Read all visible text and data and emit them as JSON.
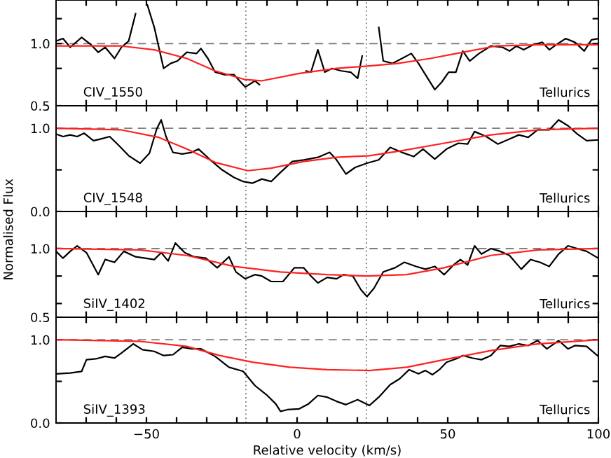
{
  "chart_data": [
    {
      "type": "line",
      "xlim": [
        -80,
        100
      ],
      "ylim": [
        0.5,
        1.35
      ],
      "tick_labels": "y",
      "xticks": [
        {
          "value": -70,
          "label": null
        },
        {
          "value": -60,
          "label": null
        },
        {
          "value": -50,
          "label": null
        },
        {
          "value": -40,
          "label": null
        },
        {
          "value": -30,
          "label": null
        },
        {
          "value": -20,
          "label": null
        },
        {
          "value": -10,
          "label": null
        },
        {
          "value": 0,
          "label": null
        },
        {
          "value": 10,
          "label": null
        },
        {
          "value": 20,
          "label": null
        },
        {
          "value": 30,
          "label": null
        },
        {
          "value": 40,
          "label": null
        },
        {
          "value": 50,
          "label": null
        },
        {
          "value": 60,
          "label": null
        },
        {
          "value": 70,
          "label": null
        },
        {
          "value": 80,
          "label": null
        },
        {
          "value": 90,
          "label": null
        },
        {
          "value": 100,
          "label": null
        }
      ],
      "yticks": [
        {
          "value": 0.5,
          "label": "0.5"
        },
        {
          "value": 0.8,
          "label": null
        },
        {
          "value": 1.0,
          "label": "1.0"
        },
        {
          "value": 1.2,
          "label": null
        }
      ],
      "annotations": [
        "CIV_1550",
        "Tellurics"
      ],
      "ref_lines": [
        {
          "axis": "y",
          "value": 1.0,
          "color": "#808080",
          "line_style": "dashed"
        },
        {
          "axis": "x",
          "value": -17,
          "color": "#808080",
          "line_style": "dotted"
        },
        {
          "axis": "x",
          "value": 23,
          "color": "#808080",
          "line_style": "dotted"
        }
      ],
      "series": [
        {
          "color": "#000000",
          "x": [
            -80,
            -77.7,
            -75.3,
            -71.5,
            -68.4,
            -66.0,
            -63.7,
            -60.6,
            -58.3,
            -55.9,
            -53.6,
            -51.3,
            -49.7,
            -47.4,
            -44.3,
            -42.0,
            -39.7,
            -36.6,
            -33.4,
            -31.9,
            -29.6,
            -27.2,
            -24.1,
            -21.0,
            -18.7,
            -17.2,
            -14.0,
            -12.5,
            -11.0,
            -5.0,
            1.5,
            3.0,
            4.6,
            6.9,
            9.2,
            11.6,
            14.7,
            17.8,
            20.1,
            21.6,
            23.2,
            25.5,
            27.1,
            28.6,
            31.7,
            34.8,
            37.9,
            40.3,
            42.6,
            45.7,
            48.0,
            50.3,
            52.7,
            55.0,
            57.3,
            60.4,
            64.3,
            68.2,
            70.5,
            72.8,
            75.2,
            78.3,
            81.4,
            83.7,
            86.0,
            89.1,
            92.2,
            95.3,
            97.7,
            100
          ],
          "values": [
            1.02,
            1.04,
            0.97,
            1.05,
            0.99,
            0.93,
            0.97,
            0.88,
            0.97,
            1.02,
            1.24,
            null,
            1.31,
            1.13,
            0.8,
            0.84,
            0.86,
            0.93,
            0.92,
            0.96,
            0.88,
            0.77,
            0.75,
            0.75,
            0.69,
            0.65,
            0.7,
            0.67,
            null,
            null,
            null,
            0.78,
            0.77,
            0.95,
            0.77,
            0.8,
            0.78,
            0.77,
            0.72,
            0.9,
            null,
            null,
            1.13,
            0.86,
            0.84,
            0.88,
            0.92,
            0.84,
            0.75,
            0.63,
            0.69,
            0.77,
            0.77,
            0.94,
            0.86,
            0.92,
            0.98,
            0.97,
            0.94,
            0.98,
            0.95,
            0.99,
            1.01,
            0.95,
            0.99,
            1.04,
            1.01,
            0.94,
            1.03,
            1.04
          ]
        },
        {
          "color": "#ff2020",
          "x": [
            -80,
            -58.3,
            -47.4,
            -36.6,
            -27.2,
            -17.2,
            -11.8,
            0.7,
            13.1,
            24.0,
            33.3,
            44.2,
            55.0,
            65.9,
            79.8,
            100
          ],
          "values": [
            0.98,
            0.98,
            0.95,
            0.88,
            0.78,
            0.71,
            0.7,
            0.76,
            0.8,
            0.82,
            0.84,
            0.88,
            0.93,
            0.98,
            0.99,
            0.99
          ]
        }
      ]
    },
    {
      "type": "line",
      "xlim": [
        -80,
        100
      ],
      "ylim": [
        0,
        1.27
      ],
      "tick_labels": "y",
      "xticks": [
        {
          "value": -70,
          "label": null
        },
        {
          "value": -60,
          "label": null
        },
        {
          "value": -50,
          "label": null
        },
        {
          "value": -40,
          "label": null
        },
        {
          "value": -30,
          "label": null
        },
        {
          "value": -20,
          "label": null
        },
        {
          "value": -10,
          "label": null
        },
        {
          "value": 0,
          "label": null
        },
        {
          "value": 10,
          "label": null
        },
        {
          "value": 20,
          "label": null
        },
        {
          "value": 30,
          "label": null
        },
        {
          "value": 40,
          "label": null
        },
        {
          "value": 50,
          "label": null
        },
        {
          "value": 60,
          "label": null
        },
        {
          "value": 70,
          "label": null
        },
        {
          "value": 80,
          "label": null
        },
        {
          "value": 90,
          "label": null
        },
        {
          "value": 100,
          "label": null
        }
      ],
      "yticks": [
        {
          "value": 0,
          "label": "0.0"
        },
        {
          "value": 0.5,
          "label": null
        },
        {
          "value": 1.0,
          "label": "1.0"
        }
      ],
      "annotations": [
        "CIV_1548",
        "Tellurics"
      ],
      "ref_lines": [
        {
          "axis": "y",
          "value": 1.0,
          "color": "#808080",
          "line_style": "dashed"
        },
        {
          "axis": "x",
          "value": -17,
          "color": "#808080",
          "line_style": "dotted"
        },
        {
          "axis": "x",
          "value": 23,
          "color": "#808080",
          "line_style": "dotted"
        }
      ],
      "series": [
        {
          "color": "#000000",
          "x": [
            -80,
            -77.7,
            -75.3,
            -73.0,
            -70.7,
            -67.6,
            -65.3,
            -62.2,
            -59.1,
            -55.9,
            -52.1,
            -49.0,
            -46.6,
            -45.1,
            -43.5,
            -41.2,
            -38.1,
            -35.0,
            -32.7,
            -28.8,
            -24.9,
            -21.0,
            -17.9,
            -14.8,
            -11.7,
            -8.6,
            -5.5,
            -1.6,
            2.2,
            6.9,
            10.8,
            13.1,
            16.2,
            19.3,
            23.2,
            27.1,
            30.9,
            34.8,
            38.7,
            41.8,
            45.7,
            49.6,
            53.5,
            56.6,
            58.9,
            62.8,
            66.6,
            70.5,
            73.6,
            76.7,
            79.8,
            83.7,
            86.8,
            89.9,
            93.0,
            96.1,
            100
          ],
          "values": [
            0.93,
            0.9,
            0.92,
            0.9,
            0.94,
            0.85,
            0.87,
            0.9,
            0.79,
            0.67,
            0.58,
            0.7,
            0.99,
            1.1,
            0.9,
            0.71,
            0.69,
            0.71,
            0.75,
            0.62,
            0.5,
            0.41,
            0.36,
            0.34,
            0.39,
            0.36,
            0.47,
            0.6,
            0.62,
            0.65,
            0.71,
            0.62,
            0.45,
            0.53,
            0.58,
            0.62,
            0.77,
            0.71,
            0.66,
            0.75,
            0.63,
            0.75,
            0.82,
            0.81,
            0.96,
            0.9,
            0.81,
            0.87,
            0.92,
            0.89,
            0.98,
            0.98,
            1.1,
            1.03,
            0.93,
            0.85,
            0.86
          ]
        },
        {
          "color": "#ff2020",
          "x": [
            -80,
            -58.3,
            -45.9,
            -36.6,
            -27.2,
            -16.4,
            -8.6,
            2.2,
            13.1,
            24.0,
            34.8,
            48.8,
            64.3,
            79.8,
            100
          ],
          "values": [
            1.0,
            0.98,
            0.89,
            0.75,
            0.59,
            0.49,
            0.52,
            0.6,
            0.65,
            0.67,
            0.73,
            0.82,
            0.92,
            0.98,
            1.0
          ]
        }
      ]
    },
    {
      "type": "line",
      "xlim": [
        -80,
        100
      ],
      "ylim": [
        0.5,
        1.27
      ],
      "tick_labels": "y",
      "ylabel": "Normalised Flux",
      "xticks": [
        {
          "value": -70,
          "label": null
        },
        {
          "value": -60,
          "label": null
        },
        {
          "value": -50,
          "label": null
        },
        {
          "value": -40,
          "label": null
        },
        {
          "value": -30,
          "label": null
        },
        {
          "value": -20,
          "label": null
        },
        {
          "value": -10,
          "label": null
        },
        {
          "value": 0,
          "label": null
        },
        {
          "value": 10,
          "label": null
        },
        {
          "value": 20,
          "label": null
        },
        {
          "value": 30,
          "label": null
        },
        {
          "value": 40,
          "label": null
        },
        {
          "value": 50,
          "label": null
        },
        {
          "value": 60,
          "label": null
        },
        {
          "value": 70,
          "label": null
        },
        {
          "value": 80,
          "label": null
        },
        {
          "value": 90,
          "label": null
        },
        {
          "value": 100,
          "label": null
        }
      ],
      "yticks": [
        {
          "value": 0.5,
          "label": "0.5"
        },
        {
          "value": 0.6,
          "label": null
        },
        {
          "value": 0.8,
          "label": null
        },
        {
          "value": 1.0,
          "label": "1.0"
        }
      ],
      "annotations": [
        "SiIV_1402",
        "Tellurics"
      ],
      "ref_lines": [
        {
          "axis": "y",
          "value": 1.0,
          "color": "#808080",
          "line_style": "dashed"
        },
        {
          "axis": "x",
          "value": -17,
          "color": "#808080",
          "line_style": "dotted"
        },
        {
          "axis": "x",
          "value": 23,
          "color": "#808080",
          "line_style": "dotted"
        }
      ],
      "series": [
        {
          "color": "#000000",
          "x": [
            -80,
            -77.7,
            -75.3,
            -73.0,
            -69.9,
            -66.0,
            -63.7,
            -60.6,
            -57.5,
            -53.6,
            -50.5,
            -47.4,
            -45.1,
            -42.8,
            -40.4,
            -37.3,
            -34.2,
            -30.3,
            -26.5,
            -22.6,
            -20.3,
            -17.2,
            -14.0,
            -11.7,
            -8.6,
            -4.7,
            -0.9,
            2.2,
            4.6,
            6.9,
            10.0,
            13.1,
            15.4,
            18.5,
            21.2,
            23.2,
            25.5,
            28.6,
            32.5,
            35.6,
            39.5,
            42.6,
            45.7,
            48.8,
            51.9,
            54.2,
            56.6,
            58.9,
            61.2,
            64.3,
            67.4,
            70.5,
            74.4,
            77.5,
            80.6,
            83.7,
            86.8,
            89.9,
            93.0,
            96.1,
            100
          ],
          "values": [
            0.98,
            0.93,
            0.98,
            1.02,
            0.97,
            0.81,
            0.92,
            0.9,
            0.98,
            0.94,
            0.93,
            0.92,
            0.97,
            0.91,
            1.04,
            0.97,
            0.94,
            0.93,
            0.86,
            0.94,
            0.83,
            0.78,
            0.81,
            0.8,
            0.76,
            0.76,
            0.86,
            0.86,
            0.8,
            0.75,
            0.79,
            0.78,
            0.81,
            0.8,
            0.7,
            0.65,
            0.71,
            0.83,
            0.86,
            0.9,
            0.87,
            0.85,
            0.87,
            0.81,
            0.88,
            0.92,
            0.88,
            1.02,
            0.96,
            1.0,
            0.98,
            0.95,
            0.85,
            0.92,
            0.9,
            0.87,
            0.96,
            1.02,
            1.0,
            0.98,
            0.93
          ]
        },
        {
          "color": "#ff2020",
          "x": [
            -80,
            -52.1,
            -36.6,
            -21.0,
            -5.5,
            10.0,
            23.2,
            36.4,
            48.8,
            64.3,
            79.8,
            100
          ],
          "values": [
            1.0,
            0.99,
            0.95,
            0.87,
            0.83,
            0.81,
            0.8,
            0.81,
            0.86,
            0.95,
            0.99,
            1.0
          ]
        }
      ]
    },
    {
      "type": "line",
      "xlim": [
        -80,
        100
      ],
      "ylim": [
        0,
        1.27
      ],
      "xlabel": "Relative velocity (km/s)",
      "xticks": [
        {
          "value": -70,
          "label": null
        },
        {
          "value": -60,
          "label": null
        },
        {
          "value": -50,
          "label": "−50"
        },
        {
          "value": -40,
          "label": null
        },
        {
          "value": -30,
          "label": null
        },
        {
          "value": -20,
          "label": null
        },
        {
          "value": -10,
          "label": null
        },
        {
          "value": 0,
          "label": "0"
        },
        {
          "value": 10,
          "label": null
        },
        {
          "value": 20,
          "label": null
        },
        {
          "value": 30,
          "label": null
        },
        {
          "value": 40,
          "label": null
        },
        {
          "value": 50,
          "label": "50"
        },
        {
          "value": 60,
          "label": null
        },
        {
          "value": 70,
          "label": null
        },
        {
          "value": 80,
          "label": null
        },
        {
          "value": 90,
          "label": null
        },
        {
          "value": 100,
          "label": "100"
        }
      ],
      "yticks": [
        {
          "value": 0,
          "label": "0.0"
        },
        {
          "value": 0.5,
          "label": null
        },
        {
          "value": 1.0,
          "label": "1.0"
        }
      ],
      "annotations": [
        "SiIV_1393",
        "Tellurics"
      ],
      "ref_lines": [
        {
          "axis": "y",
          "value": 1.0,
          "color": "#808080",
          "line_style": "dashed"
        },
        {
          "axis": "x",
          "value": -17,
          "color": "#808080",
          "line_style": "dotted"
        },
        {
          "axis": "x",
          "value": 23,
          "color": "#808080",
          "line_style": "dotted"
        }
      ],
      "series": [
        {
          "color": "#000000",
          "x": [
            -80,
            -75.3,
            -71.5,
            -69.9,
            -66.8,
            -63.7,
            -60.6,
            -58.3,
            -54.4,
            -51.3,
            -47.4,
            -44.3,
            -41.2,
            -38.1,
            -35.0,
            -31.9,
            -27.2,
            -22.6,
            -17.9,
            -14.0,
            -10.2,
            -7.1,
            -5.5,
            -3.2,
            0.7,
            3.8,
            6.9,
            10.0,
            13.1,
            16.2,
            20.1,
            24.0,
            27.1,
            30.9,
            34.0,
            37.2,
            40.3,
            42.6,
            44.9,
            47.2,
            49.6,
            52.7,
            55.0,
            58.1,
            61.2,
            64.3,
            67.4,
            70.5,
            73.6,
            76.7,
            79.8,
            82.9,
            86.8,
            89.9,
            92.2,
            96.1,
            100
          ],
          "values": [
            0.59,
            0.6,
            0.62,
            0.76,
            0.77,
            0.8,
            0.78,
            0.84,
            0.95,
            0.88,
            0.86,
            0.81,
            0.82,
            0.91,
            0.89,
            0.89,
            0.8,
            0.67,
            0.62,
            0.45,
            0.34,
            0.23,
            0.14,
            0.16,
            0.17,
            0.23,
            0.33,
            0.31,
            0.26,
            0.22,
            0.28,
            0.21,
            0.31,
            0.46,
            0.53,
            0.64,
            0.59,
            0.63,
            0.58,
            0.64,
            0.73,
            0.77,
            0.81,
            0.78,
            0.76,
            0.81,
            0.93,
            0.92,
            0.95,
            0.93,
            0.99,
            0.89,
            0.99,
            0.89,
            0.93,
            0.92,
            0.8
          ]
        },
        {
          "color": "#ff2020",
          "x": [
            -80,
            -52.1,
            -36.6,
            -25.7,
            -14.8,
            -2.4,
            10.0,
            24.0,
            36.4,
            48.8,
            64.3,
            79.8,
            100
          ],
          "values": [
            1.0,
            0.98,
            0.92,
            0.81,
            0.73,
            0.67,
            0.64,
            0.63,
            0.67,
            0.76,
            0.87,
            0.95,
            1.0
          ]
        }
      ]
    }
  ]
}
